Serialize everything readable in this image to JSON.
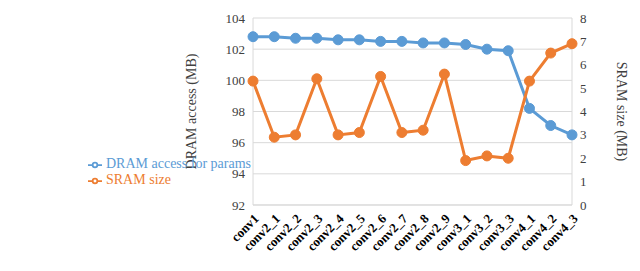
{
  "chart_data": {
    "type": "line",
    "categories": [
      "conv1",
      "conv2_1",
      "conv2_2",
      "conv2_3",
      "conv2_4",
      "conv2_5",
      "conv2_6",
      "conv2_7",
      "conv2_8",
      "conv2_9",
      "conv3_1",
      "conv3_2",
      "conv3_3",
      "conv4_1",
      "conv4_2",
      "conv4_3"
    ],
    "y_label": "DRAM access (MB)",
    "y2_label": "SRAM size (MB)",
    "ylim": [
      92,
      104
    ],
    "yticks": [
      92,
      94,
      96,
      98,
      100,
      102,
      104
    ],
    "y2lim": [
      0,
      8
    ],
    "y2ticks": [
      0,
      1,
      2,
      3,
      4,
      5,
      6,
      7,
      8
    ],
    "grid": true,
    "legend": "lower left",
    "series": [
      {
        "name": "DRAM access for params",
        "color": "#5b9bd5",
        "marker": "circle",
        "values": [
          102.8,
          102.8,
          102.7,
          102.7,
          102.6,
          102.6,
          102.5,
          102.5,
          102.4,
          102.4,
          102.3,
          102.0,
          101.9,
          98.2,
          97.1,
          96.5
        ]
      },
      {
        "name": "SRAM size",
        "color": "#ed7d31",
        "marker": "circle",
        "axis": "y2",
        "values": [
          5.3,
          2.9,
          3.0,
          5.4,
          3.0,
          3.1,
          5.5,
          3.1,
          3.2,
          5.6,
          1.9,
          2.1,
          2.0,
          5.3,
          6.5,
          6.9
        ]
      }
    ]
  }
}
